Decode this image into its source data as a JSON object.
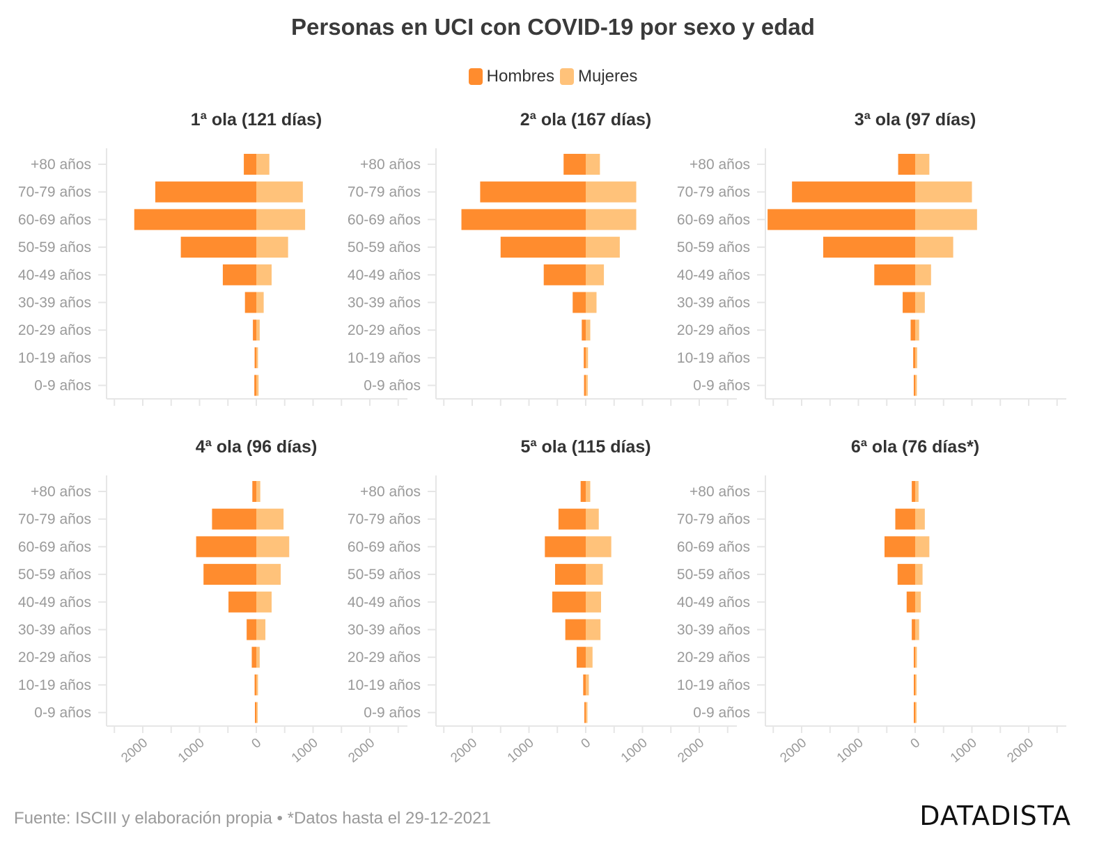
{
  "title": "Personas en UCI con COVID-19 por sexo y edad",
  "legend": {
    "hombres": "Hombres",
    "mujeres": "Mujeres"
  },
  "colors": {
    "hombres": "#ff8c2e",
    "mujeres": "#ffc27a",
    "axis": "#e6e6e6",
    "tick_text": "#9a9a9a",
    "panel_title": "#333333"
  },
  "footer": "Fuente: ISCIII y elaboración propia • *Datos hasta el 29-12-2021",
  "brand": "DATADISTA",
  "chart_data": {
    "type": "bar",
    "orientation": "horizontal-population-pyramid",
    "categories": [
      "+80 años",
      "70-79 años",
      "60-69 años",
      "50-59 años",
      "40-49 años",
      "30-39 años",
      "20-29 años",
      "10-19 años",
      "0-9 años"
    ],
    "xlim": [
      -2600,
      2600
    ],
    "xticks": [
      -2000,
      -1000,
      0,
      1000,
      2000
    ],
    "xtick_labels": [
      "2000",
      "1000",
      "0",
      "1000",
      "2000"
    ],
    "panels": [
      {
        "title": "1ª ola (121 días)",
        "series": [
          {
            "name": "Hombres",
            "values": [
              220,
              1780,
              2150,
              1330,
              590,
              200,
              60,
              30,
              35
            ]
          },
          {
            "name": "Mujeres",
            "values": [
              230,
              820,
              860,
              560,
              270,
              130,
              60,
              30,
              40
            ]
          }
        ]
      },
      {
        "title": "2ª ola (167 días)",
        "series": [
          {
            "name": "Hombres",
            "values": [
              390,
              1860,
              2190,
              1500,
              740,
              230,
              70,
              35,
              30
            ]
          },
          {
            "name": "Mujeres",
            "values": [
              250,
              890,
              890,
              600,
              320,
              190,
              80,
              40,
              35
            ]
          }
        ]
      },
      {
        "title": "3ª ola (97 días)",
        "series": [
          {
            "name": "Hombres",
            "values": [
              300,
              2170,
              2600,
              1620,
              720,
              220,
              80,
              35,
              25
            ]
          },
          {
            "name": "Mujeres",
            "values": [
              250,
              1000,
              1090,
              670,
              280,
              170,
              70,
              35,
              30
            ]
          }
        ]
      },
      {
        "title": "4ª ola (96 días)",
        "series": [
          {
            "name": "Hombres",
            "values": [
              70,
              780,
              1060,
              930,
              490,
              170,
              80,
              30,
              20
            ]
          },
          {
            "name": "Mujeres",
            "values": [
              70,
              480,
              580,
              430,
              270,
              160,
              60,
              30,
              25
            ]
          }
        ]
      },
      {
        "title": "5ª ola (115 días)",
        "series": [
          {
            "name": "Hombres",
            "values": [
              90,
              480,
              720,
              540,
              590,
              360,
              160,
              45,
              20
            ]
          },
          {
            "name": "Mujeres",
            "values": [
              80,
              230,
              450,
              300,
              270,
              260,
              120,
              55,
              30
            ]
          }
        ]
      },
      {
        "title": "6ª ola (76 días*)",
        "series": [
          {
            "name": "Hombres",
            "values": [
              60,
              350,
              540,
              310,
              150,
              60,
              25,
              15,
              15
            ]
          },
          {
            "name": "Mujeres",
            "values": [
              60,
              170,
              250,
              130,
              100,
              70,
              30,
              20,
              15
            ]
          }
        ]
      }
    ]
  }
}
